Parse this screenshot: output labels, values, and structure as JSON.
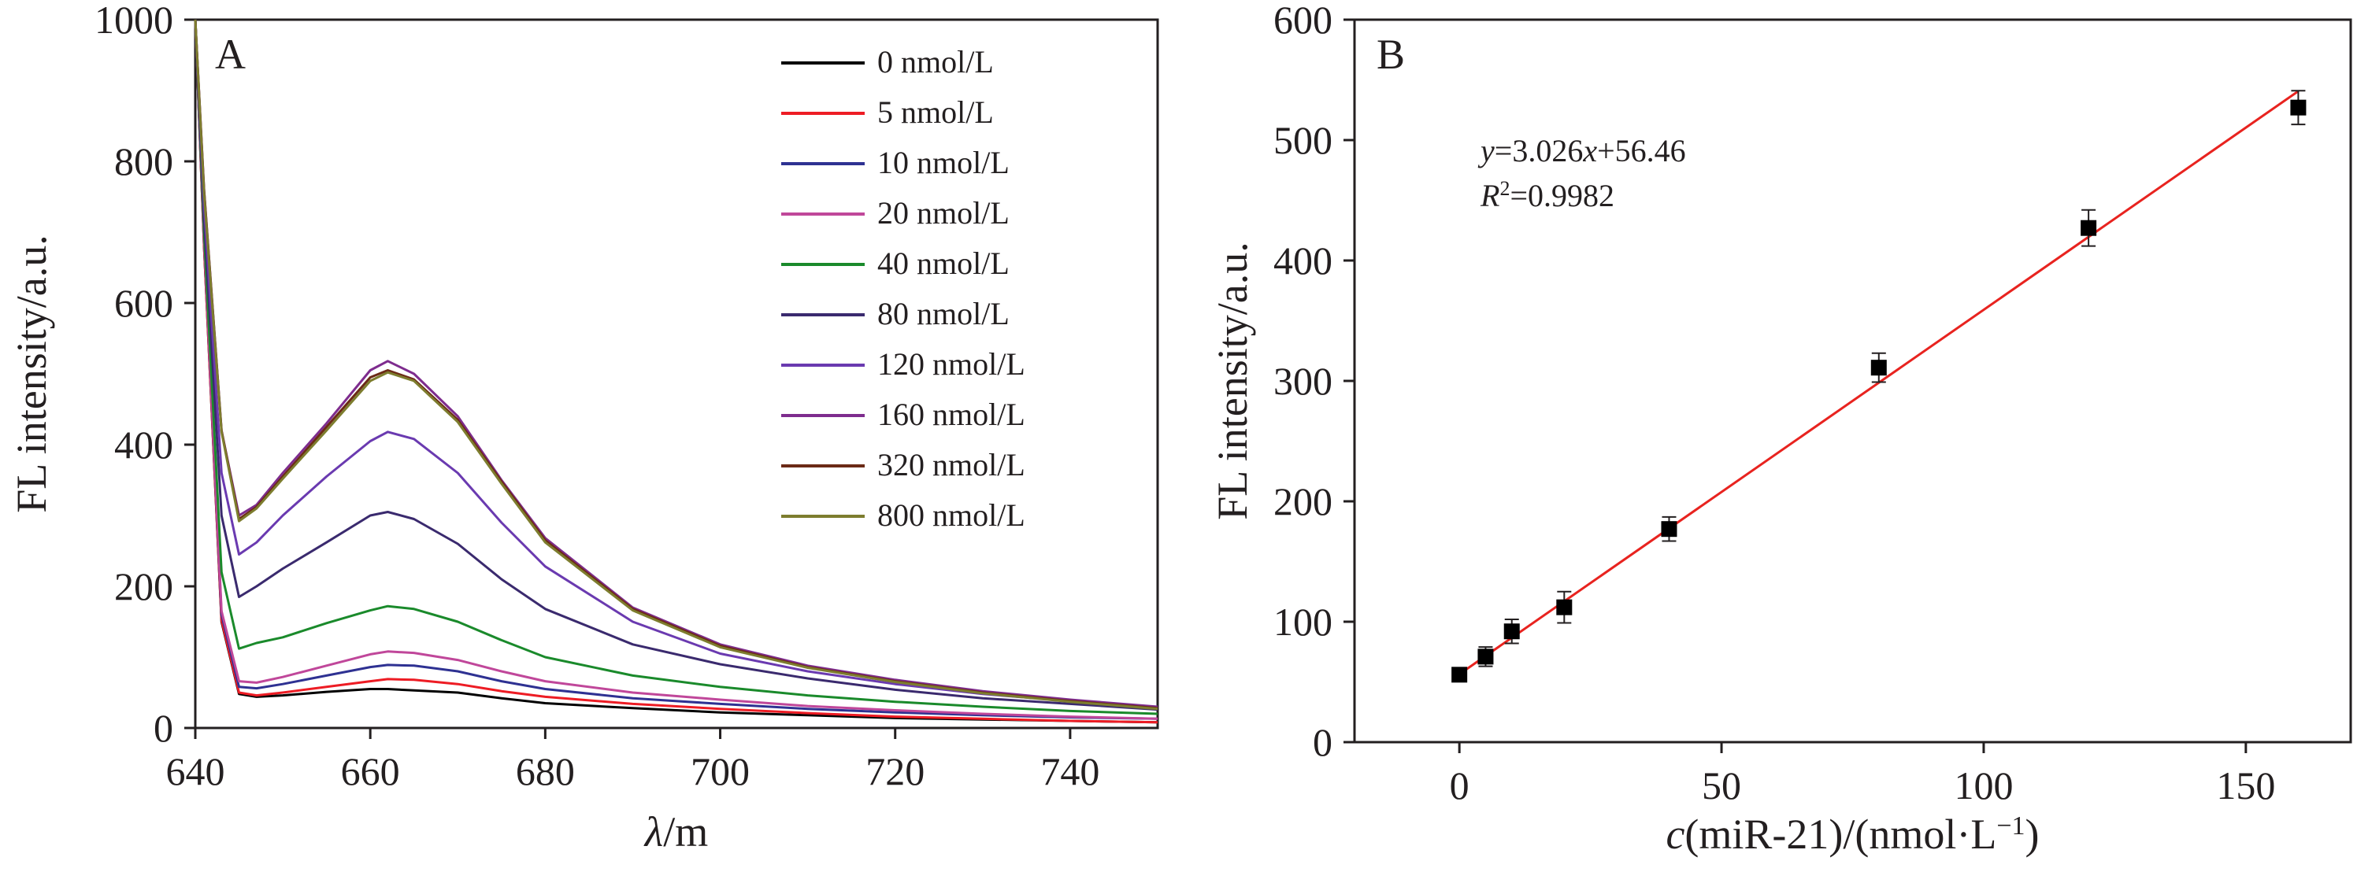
{
  "chart_data": [
    {
      "panel": "A",
      "type": "line",
      "xlabel_var": "λ",
      "xlabel_unit": "/m",
      "ylabel": "FL intensity/a.u.",
      "xlim": [
        640,
        750
      ],
      "ylim": [
        0,
        1000
      ],
      "x_ticks": [
        640,
        660,
        680,
        700,
        720,
        740
      ],
      "y_ticks": [
        0,
        200,
        400,
        600,
        800,
        1000
      ],
      "legend_position": "top-right",
      "x": [
        640,
        641,
        643,
        645,
        647,
        650,
        655,
        660,
        662,
        665,
        670,
        675,
        680,
        690,
        700,
        710,
        720,
        730,
        740,
        750
      ],
      "series": [
        {
          "name": "0 nmol/L",
          "color": "#000000",
          "values": [
            1000,
            680,
            150,
            48,
            44,
            46,
            51,
            55,
            55,
            53,
            50,
            42,
            35,
            28,
            22,
            18,
            14,
            12,
            10,
            8
          ]
        },
        {
          "name": "5 nmol/L",
          "color": "#ed1c24",
          "values": [
            1000,
            680,
            152,
            50,
            46,
            50,
            58,
            66,
            69,
            68,
            62,
            52,
            44,
            34,
            27,
            21,
            16,
            13,
            10,
            8
          ]
        },
        {
          "name": "10 nmol/L",
          "color": "#2e3192",
          "values": [
            1000,
            690,
            160,
            58,
            56,
            62,
            74,
            86,
            89,
            88,
            80,
            66,
            55,
            42,
            34,
            27,
            22,
            18,
            15,
            13
          ]
        },
        {
          "name": "20 nmol/L",
          "color": "#c0479a",
          "values": [
            1000,
            690,
            165,
            66,
            64,
            72,
            88,
            104,
            108,
            106,
            96,
            80,
            66,
            50,
            40,
            31,
            25,
            20,
            16,
            13
          ]
        },
        {
          "name": "40 nmol/L",
          "color": "#1a8a2b",
          "values": [
            1000,
            700,
            220,
            112,
            120,
            128,
            148,
            166,
            172,
            168,
            150,
            124,
            100,
            74,
            58,
            46,
            37,
            30,
            24,
            20
          ]
        },
        {
          "name": "80 nmol/L",
          "color": "#3a2a6e",
          "values": [
            1000,
            720,
            300,
            185,
            200,
            225,
            262,
            300,
            305,
            295,
            260,
            210,
            168,
            118,
            90,
            70,
            54,
            42,
            34,
            26
          ]
        },
        {
          "name": "120 nmol/L",
          "color": "#6a3ab0",
          "values": [
            1000,
            740,
            360,
            245,
            262,
            300,
            355,
            405,
            418,
            408,
            360,
            290,
            228,
            150,
            105,
            80,
            62,
            48,
            38,
            28
          ]
        },
        {
          "name": "160 nmol/L",
          "color": "#7e2c8e",
          "values": [
            1000,
            760,
            420,
            300,
            315,
            360,
            430,
            505,
            518,
            500,
            440,
            350,
            268,
            170,
            118,
            88,
            68,
            52,
            40,
            30
          ]
        },
        {
          "name": "320 nmol/L",
          "color": "#6b2a16",
          "values": [
            1000,
            760,
            420,
            295,
            312,
            355,
            425,
            495,
            505,
            492,
            435,
            348,
            265,
            168,
            116,
            86,
            66,
            50,
            38,
            28
          ]
        },
        {
          "name": "800 nmol/L",
          "color": "#7d7d2e",
          "values": [
            1000,
            755,
            418,
            292,
            310,
            352,
            420,
            490,
            502,
            490,
            432,
            345,
            262,
            166,
            114,
            85,
            65,
            49,
            37,
            27
          ]
        }
      ]
    },
    {
      "panel": "B",
      "type": "scatter",
      "xlabel_var": "c",
      "xlabel_text": "(miR-21)/(nmol·L",
      "xlabel_exp": "−1",
      "xlabel_close": ")",
      "ylabel": "FL intensity/a.u.",
      "xlim": [
        -20,
        170
      ],
      "ylim": [
        0,
        600
      ],
      "x_ticks": [
        0,
        50,
        100,
        150
      ],
      "y_ticks": [
        0,
        100,
        200,
        300,
        400,
        500,
        600
      ],
      "points": [
        {
          "x": 0,
          "y": 56,
          "err": 4
        },
        {
          "x": 5,
          "y": 71,
          "err": 8
        },
        {
          "x": 10,
          "y": 92,
          "err": 10
        },
        {
          "x": 20,
          "y": 112,
          "err": 13
        },
        {
          "x": 40,
          "y": 177,
          "err": 10
        },
        {
          "x": 80,
          "y": 311,
          "err": 12
        },
        {
          "x": 120,
          "y": 427,
          "err": 15
        },
        {
          "x": 160,
          "y": 527,
          "err": 14
        }
      ],
      "fit": {
        "slope": 3.026,
        "intercept": 56.46,
        "x_range": [
          0,
          160
        ],
        "color": "#e8231f"
      },
      "equation": {
        "y_var": "y",
        "eq_mid": "=3.026",
        "x_var": "x",
        "eq_end": "+56.46",
        "r_var": "R",
        "r_exp": "2",
        "r_val": "=0.9982"
      }
    }
  ]
}
